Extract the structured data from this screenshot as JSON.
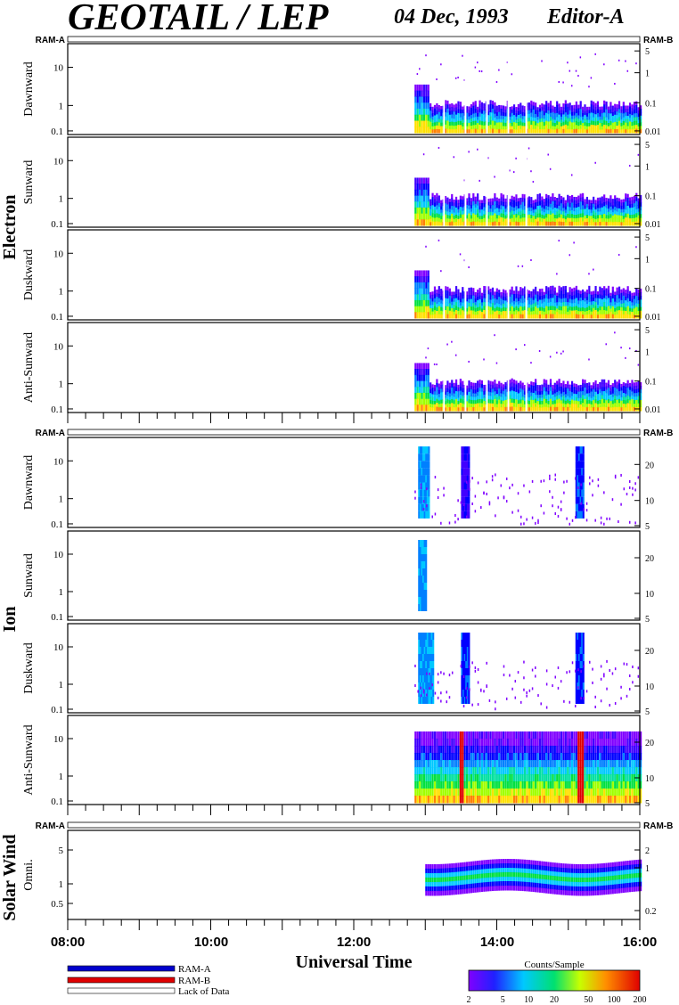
{
  "header": {
    "title": "GEOTAIL / LEP",
    "date": "04 Dec, 1993",
    "editor": "Editor-A"
  },
  "colors": {
    "ram_a": "#0000cc",
    "ram_b": "#e00000",
    "lack_of_data": "#ffffff"
  },
  "strip_labels": {
    "left": "RAM-A",
    "right": "RAM-B"
  },
  "groups": {
    "electron": "Electron",
    "ion": "Ion",
    "solar_wind": "Solar Wind"
  },
  "panels": {
    "e_dawn": "Dawnward",
    "e_sun": "Sunward",
    "e_dusk": "Duskward",
    "e_anti": "Anti-Sunward",
    "i_dawn": "Dawnward",
    "i_sun": "Sunward",
    "i_dusk": "Duskward",
    "i_anti": "Anti-Sunward",
    "sw_omni": "Omni."
  },
  "left_ticks_main": [
    "10",
    "1",
    "0.1"
  ],
  "left_ticks_sw": [
    "5",
    "1",
    "0.5"
  ],
  "right_ticks_electron": [
    "5",
    "1",
    "0.1",
    "0.01"
  ],
  "right_ticks_ion": [
    "20",
    "10",
    "5"
  ],
  "right_ticks_sw": [
    "2",
    "1",
    "0.2"
  ],
  "xaxis": {
    "label": "Universal Time",
    "ticks": [
      "08:00",
      "10:00",
      "12:00",
      "14:00",
      "16:00"
    ]
  },
  "legend": {
    "ram_a": "RAM-A",
    "ram_b": "RAM-B",
    "lack": "Lack of Data"
  },
  "colorbar": {
    "title": "Counts/Sample",
    "ticks": [
      "2",
      "5",
      "10",
      "20",
      "50",
      "100",
      "200"
    ]
  },
  "chart_data": {
    "type": "heatmap",
    "title": "GEOTAIL / LEP",
    "xlabel": "Universal Time",
    "x_range_hours": [
      8,
      16
    ],
    "data_start_hour": 12.85,
    "colorbar_range": [
      2,
      200
    ],
    "colorbar_scale": "log",
    "electron_energy_band": [
      0.1,
      2
    ],
    "ion_burst_hours": [
      12.9,
      13.5,
      15.15
    ],
    "solar_wind_band_center": 1.2
  }
}
